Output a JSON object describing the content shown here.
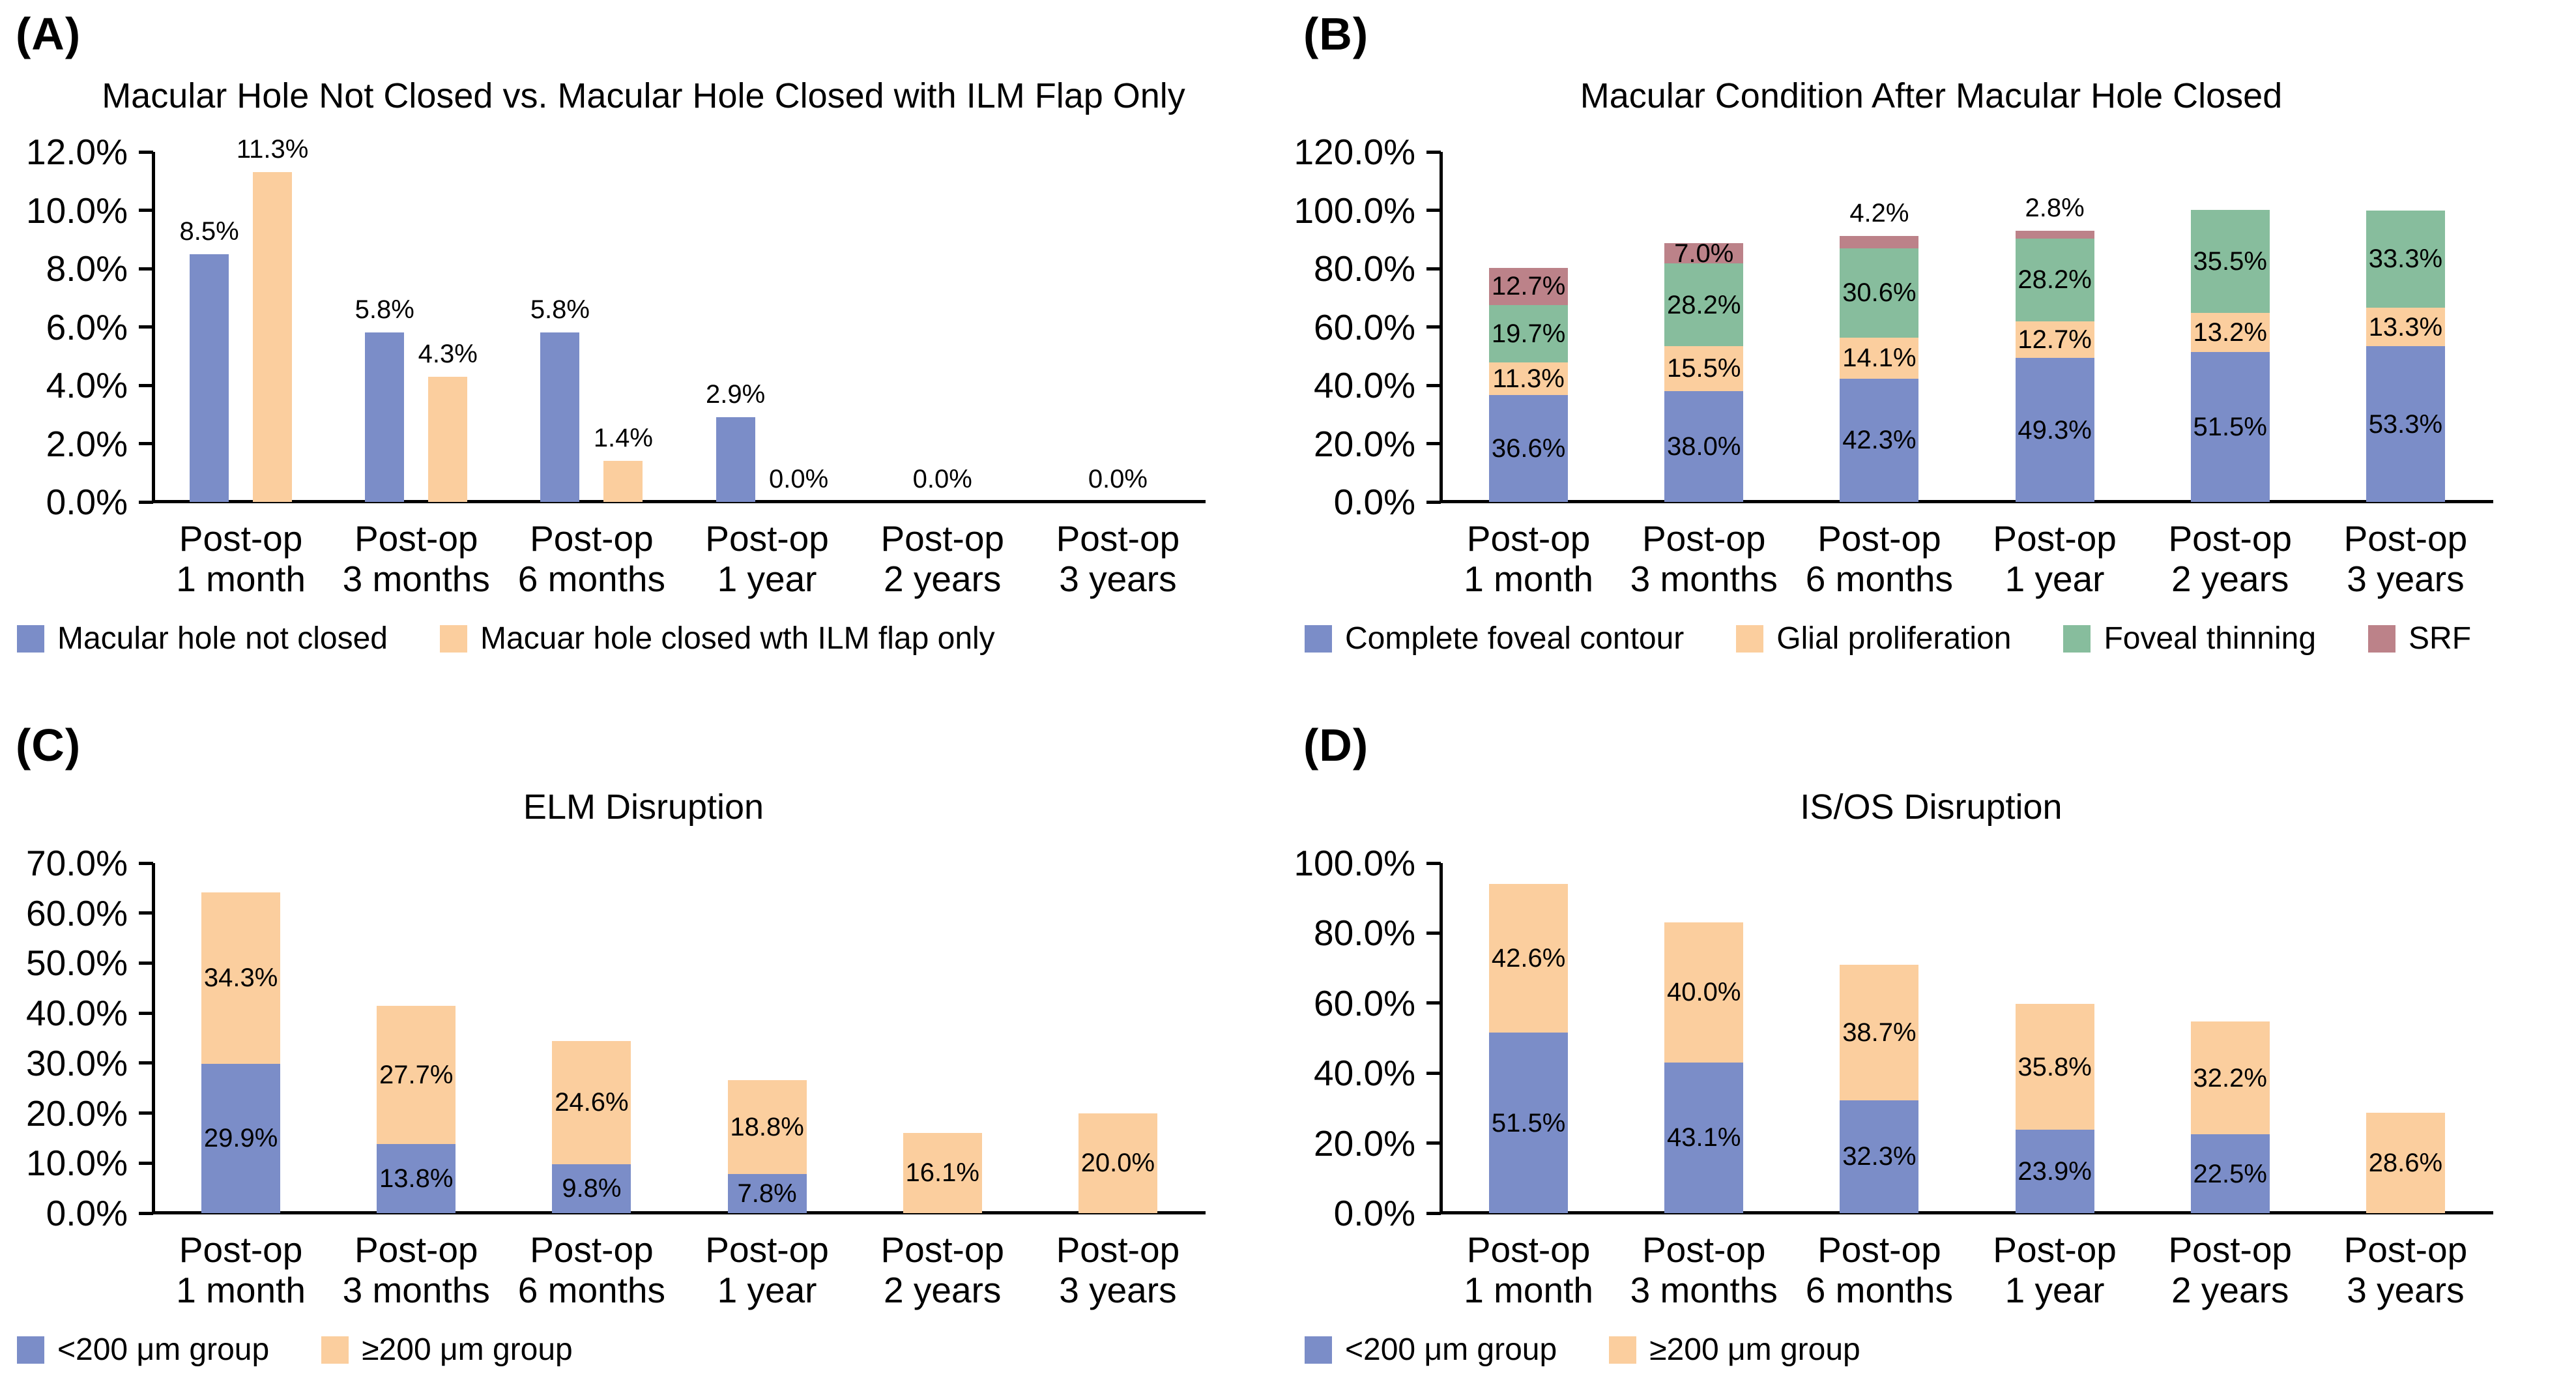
{
  "figure": {
    "background": "#ffffff",
    "text_color": "#000000",
    "axis_color": "#000000",
    "colors": {
      "blue": "#7B8DC8",
      "orange": "#FBCE9E",
      "green": "#87BD9D",
      "maroon": "#BC8289"
    }
  },
  "chart_data": [
    {
      "panel_label": "(A)",
      "type": "bar",
      "variant": "grouped",
      "title": "Macular Hole Not Closed vs. Macular Hole Closed with ILM Flap Only",
      "xlabel": "",
      "ylabel": "",
      "grid": false,
      "legend_position": "bottom-left",
      "categories": [
        "Post-op\n1 month",
        "Post-op\n3 months",
        "Post-op\n6 months",
        "Post-op\n1 year",
        "Post-op\n2 years",
        "Post-op\n3 years"
      ],
      "y_axis": {
        "min": 0,
        "max": 12,
        "tick_step": 2,
        "tick_labels": [
          "0.0%",
          "2.0%",
          "4.0%",
          "6.0%",
          "8.0%",
          "10.0%",
          "12.0%"
        ]
      },
      "series": [
        {
          "name": "Macular hole not closed",
          "color": "#7B8DC8",
          "values": [
            8.5,
            5.8,
            5.8,
            2.9,
            0,
            0
          ],
          "value_labels": [
            "8.5%",
            "5.8%",
            "5.8%",
            "2.9%",
            "",
            ""
          ]
        },
        {
          "name": "Macuar hole closed wth ILM flap only",
          "color": "#FBCE9E",
          "values": [
            11.3,
            4.3,
            1.4,
            0,
            0,
            0
          ],
          "value_labels": [
            "11.3%",
            "4.3%",
            "1.4%",
            "0.0%",
            "",
            ""
          ]
        }
      ],
      "category_zero_labels": [
        "",
        "",
        "",
        "",
        "0.0%",
        "0.0%"
      ]
    },
    {
      "panel_label": "(B)",
      "type": "bar",
      "variant": "stacked",
      "title": "Macular Condition After Macular Hole Closed",
      "xlabel": "",
      "ylabel": "",
      "grid": false,
      "legend_position": "bottom-left",
      "categories": [
        "Post-op\n1 month",
        "Post-op\n3 months",
        "Post-op\n6 months",
        "Post-op\n1 year",
        "Post-op\n2 years",
        "Post-op\n3 years"
      ],
      "y_axis": {
        "min": 0,
        "max": 120,
        "tick_step": 20,
        "tick_labels": [
          "0.0%",
          "20.0%",
          "40.0%",
          "60.0%",
          "80.0%",
          "100.0%",
          "120.0%"
        ]
      },
      "series": [
        {
          "name": "Complete foveal contour",
          "color": "#7B8DC8",
          "values": [
            36.6,
            38.0,
            42.3,
            49.3,
            51.5,
            53.3
          ],
          "value_labels": [
            "36.6%",
            "38.0%",
            "42.3%",
            "49.3%",
            "51.5%",
            "53.3%"
          ]
        },
        {
          "name": "Glial proliferation",
          "color": "#FBCE9E",
          "values": [
            11.3,
            15.5,
            14.1,
            12.7,
            13.2,
            13.3
          ],
          "value_labels": [
            "11.3%",
            "15.5%",
            "14.1%",
            "12.7%",
            "13.2%",
            "13.3%"
          ]
        },
        {
          "name": "Foveal thinning",
          "color": "#87BD9D",
          "values": [
            19.7,
            28.2,
            30.6,
            28.2,
            35.5,
            33.3
          ],
          "value_labels": [
            "19.7%",
            "28.2%",
            "30.6%",
            "28.2%",
            "35.5%",
            "33.3%"
          ]
        },
        {
          "name": "SRF",
          "color": "#BC8289",
          "values": [
            12.7,
            7.0,
            4.2,
            2.8,
            0,
            0
          ],
          "value_labels": [
            "12.7%",
            "7.0%",
            "4.2%",
            "2.8%",
            "",
            ""
          ]
        }
      ],
      "category_zero_labels": [
        "",
        "",
        "",
        "",
        "",
        ""
      ]
    },
    {
      "panel_label": "(C)",
      "type": "bar",
      "variant": "stacked",
      "title": "ELM Disruption",
      "xlabel": "",
      "ylabel": "",
      "grid": false,
      "legend_position": "bottom-left",
      "categories": [
        "Post-op\n1 month",
        "Post-op\n3 months",
        "Post-op\n6 months",
        "Post-op\n1 year",
        "Post-op\n2 years",
        "Post-op\n3 years"
      ],
      "y_axis": {
        "min": 0,
        "max": 70,
        "tick_step": 10,
        "tick_labels": [
          "0.0%",
          "10.0%",
          "20.0%",
          "30.0%",
          "40.0%",
          "50.0%",
          "60.0%",
          "70.0%"
        ]
      },
      "series": [
        {
          "name": "<200 μm group",
          "color": "#7B8DC8",
          "values": [
            29.9,
            13.8,
            9.8,
            7.8,
            0,
            0
          ],
          "value_labels": [
            "29.9%",
            "13.8%",
            "9.8%",
            "7.8%",
            "",
            ""
          ]
        },
        {
          "name": "≥200 μm group",
          "color": "#FBCE9E",
          "values": [
            34.3,
            27.7,
            24.6,
            18.8,
            16.1,
            20.0
          ],
          "value_labels": [
            "34.3%",
            "27.7%",
            "24.6%",
            "18.8%",
            "16.1%",
            "20.0%"
          ]
        }
      ],
      "category_zero_labels": [
        "",
        "",
        "",
        "",
        "",
        ""
      ]
    },
    {
      "panel_label": "(D)",
      "type": "bar",
      "variant": "stacked",
      "title": "IS/OS Disruption",
      "xlabel": "",
      "ylabel": "",
      "grid": false,
      "legend_position": "bottom-left",
      "categories": [
        "Post-op\n1 month",
        "Post-op\n3 months",
        "Post-op\n6 months",
        "Post-op\n1 year",
        "Post-op\n2 years",
        "Post-op\n3 years"
      ],
      "y_axis": {
        "min": 0,
        "max": 100,
        "tick_step": 20,
        "tick_labels": [
          "0.0%",
          "20.0%",
          "40.0%",
          "60.0%",
          "80.0%",
          "100.0%"
        ]
      },
      "series": [
        {
          "name": "<200 μm group",
          "color": "#7B8DC8",
          "values": [
            51.5,
            43.1,
            32.3,
            23.9,
            22.5,
            0
          ],
          "value_labels": [
            "51.5%",
            "43.1%",
            "32.3%",
            "23.9%",
            "22.5%",
            ""
          ]
        },
        {
          "name": "≥200 μm group",
          "color": "#FBCE9E",
          "values": [
            42.6,
            40.0,
            38.7,
            35.8,
            32.2,
            28.6
          ],
          "value_labels": [
            "42.6%",
            "40.0%",
            "38.7%",
            "35.8%",
            "32.2%",
            "28.6%"
          ]
        }
      ],
      "category_zero_labels": [
        "",
        "",
        "",
        "",
        "",
        ""
      ]
    }
  ]
}
